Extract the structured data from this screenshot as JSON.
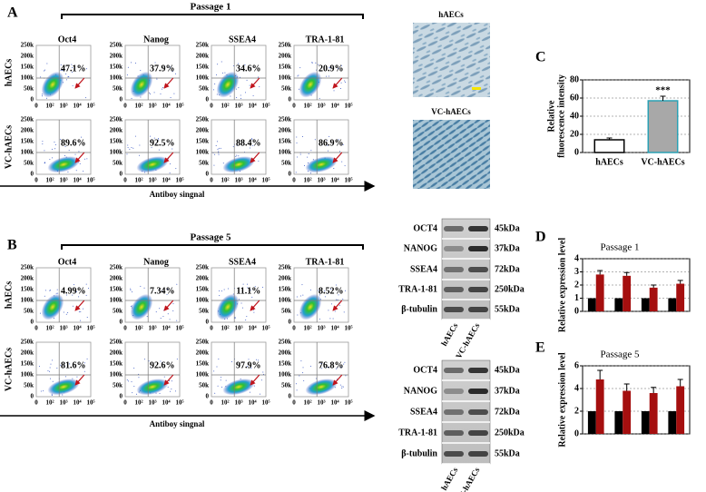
{
  "panels": {
    "A": "A",
    "B": "B",
    "C": "C",
    "D": "D",
    "E": "E"
  },
  "flow": [
    {
      "passage": "Passage 1",
      "rows": [
        "hAECs",
        "VC-hAECs"
      ],
      "columns": [
        "Oct4",
        "Nanog",
        "SSEA4",
        "TRA-1-81"
      ],
      "percentages": [
        [
          "47.1%",
          "37.9%",
          "34.6%",
          "20.9%"
        ],
        [
          "89.6%",
          "92.5%",
          "88.4%",
          "86.9%"
        ]
      ],
      "xlabel": "Antiboy singnal"
    },
    {
      "passage": "Passage 5",
      "rows": [
        "hAECs",
        "VC-hAECs"
      ],
      "columns": [
        "Oct4",
        "Nanog",
        "SSEA4",
        "TRA-1-81"
      ],
      "percentages": [
        [
          "4.99%",
          "7.34%",
          "11.1%",
          "8.52%"
        ],
        [
          "81.6%",
          "92.6%",
          "97.9%",
          "76.8%"
        ]
      ],
      "xlabel": "Antiboy singnal"
    }
  ],
  "flow_yticks": [
    "250k",
    "200k",
    "150k",
    "100k",
    "50k",
    "0"
  ],
  "flow_xticks": [
    "0",
    "10²",
    "10³",
    "10⁴",
    "10⁵"
  ],
  "micrographs": [
    "hAECs",
    "VC-hAECs"
  ],
  "blots": [
    {
      "proteins": [
        "OCT4",
        "NANOG",
        "SSEA4",
        "TRA-1-81",
        "β-tubulin"
      ],
      "sizes": [
        "45kDa",
        "37kDa",
        "72kDa",
        "250kDa",
        "55kDa"
      ],
      "lanes": [
        "hAECs",
        "VC-hAECs"
      ]
    },
    {
      "proteins": [
        "OCT4",
        "NANOG",
        "SSEA4",
        "TRA-1-81",
        "β-tubulin"
      ],
      "sizes": [
        "45kDa",
        "37kDa",
        "72kDa",
        "250kDa",
        "55kDa"
      ],
      "lanes": [
        "hAECs",
        "VC-hAECs"
      ]
    }
  ],
  "chart_data": [
    {
      "type": "bar",
      "categories": [
        "hAECs",
        "VC-hAECs"
      ],
      "values": [
        14,
        57
      ],
      "errors": [
        2,
        5
      ],
      "colors": [
        "#ffffff",
        "#a8a8a8"
      ],
      "ylabel": [
        "Relative",
        "fluorescence intensity"
      ],
      "ylim": [
        0,
        80
      ],
      "yticks": [
        0,
        20,
        40,
        60,
        80
      ],
      "grid": true,
      "annotation": "***"
    },
    {
      "type": "grouped_bar",
      "title": "Passage 1",
      "categories": [
        null,
        null,
        null,
        null
      ],
      "series": [
        {
          "color": "#000000",
          "values": [
            1,
            1,
            1,
            1
          ]
        },
        {
          "color": "#a50f0f",
          "values": [
            2.8,
            2.7,
            1.8,
            2.1
          ],
          "errors": [
            0.3,
            0.25,
            0.2,
            0.25
          ]
        }
      ],
      "ylabel": "Relative expression level",
      "ylim": [
        0,
        4
      ],
      "yticks": [
        0,
        1,
        2,
        3,
        4
      ],
      "grid": true
    },
    {
      "type": "grouped_bar",
      "title": "Passage 5",
      "categories": [
        null,
        null,
        null,
        null
      ],
      "series": [
        {
          "color": "#000000",
          "values": [
            2,
            2,
            2,
            2
          ]
        },
        {
          "color": "#a50f0f",
          "values": [
            4.8,
            3.8,
            3.6,
            4.2
          ],
          "errors": [
            0.8,
            0.6,
            0.5,
            0.6
          ]
        }
      ],
      "ylabel": "Relative expression level",
      "ylim": [
        0,
        6
      ],
      "yticks": [
        0,
        2,
        4,
        6
      ],
      "grid": true
    }
  ]
}
